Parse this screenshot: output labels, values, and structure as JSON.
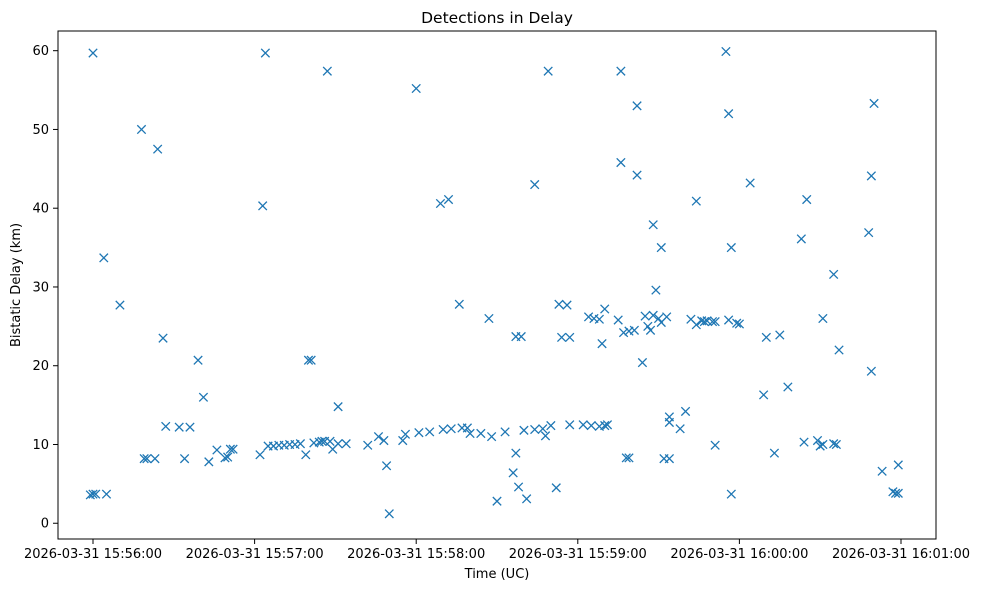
{
  "chart_data": {
    "type": "scatter",
    "title": "Detections in Delay",
    "xlabel": "Time (UC)",
    "ylabel": "Bistatic Delay (km)",
    "marker": "x",
    "color": "#1f77b4",
    "grid": false,
    "x_ticks": [
      "2026-03-31 15:56:00",
      "2026-03-31 15:57:00",
      "2026-03-31 15:58:00",
      "2026-03-31 15:59:00",
      "2026-03-31 16:00:00",
      "2026-03-31 16:01:00"
    ],
    "y_ticks": [
      "0",
      "10",
      "20",
      "30",
      "40",
      "50",
      "60"
    ],
    "xlim": [
      "2026-03-31 15:55:47",
      "2026-03-31 16:01:13"
    ],
    "ylim": [
      -2,
      62.5
    ],
    "points": [
      [
        "15:55:59",
        3.6
      ],
      [
        "15:56:00",
        59.7
      ],
      [
        "15:56:00",
        3.7
      ],
      [
        "15:56:01",
        3.7
      ],
      [
        "15:56:04",
        33.7
      ],
      [
        "15:56:05",
        3.7
      ],
      [
        "15:56:10",
        27.7
      ],
      [
        "15:56:18",
        50.0
      ],
      [
        "15:56:19",
        8.2
      ],
      [
        "15:56:20",
        8.2
      ],
      [
        "15:56:23",
        8.2
      ],
      [
        "15:56:24",
        47.5
      ],
      [
        "15:56:26",
        23.5
      ],
      [
        "15:56:27",
        12.3
      ],
      [
        "15:56:32",
        12.2
      ],
      [
        "15:56:34",
        8.2
      ],
      [
        "15:56:36",
        12.2
      ],
      [
        "15:56:39",
        20.7
      ],
      [
        "15:56:41",
        16.0
      ],
      [
        "15:56:43",
        7.8
      ],
      [
        "15:56:46",
        9.3
      ],
      [
        "15:56:49",
        8.3
      ],
      [
        "15:56:50",
        8.4
      ],
      [
        "15:56:51",
        9.4
      ],
      [
        "15:56:52",
        9.4
      ],
      [
        "15:57:02",
        8.7
      ],
      [
        "15:57:03",
        40.3
      ],
      [
        "15:57:04",
        59.7
      ],
      [
        "15:57:05",
        9.8
      ],
      [
        "15:57:07",
        9.8
      ],
      [
        "15:57:09",
        9.9
      ],
      [
        "15:57:11",
        9.9
      ],
      [
        "15:57:13",
        10.0
      ],
      [
        "15:57:15",
        10.0
      ],
      [
        "15:57:17",
        10.1
      ],
      [
        "15:57:19",
        8.7
      ],
      [
        "15:57:20",
        20.7
      ],
      [
        "15:57:21",
        20.7
      ],
      [
        "15:57:22",
        10.2
      ],
      [
        "15:57:24",
        10.3
      ],
      [
        "15:57:25",
        10.4
      ],
      [
        "15:57:26",
        10.4
      ],
      [
        "15:57:27",
        57.4
      ],
      [
        "15:57:28",
        10.4
      ],
      [
        "15:57:29",
        9.4
      ],
      [
        "15:57:31",
        14.8
      ],
      [
        "15:57:31",
        10.1
      ],
      [
        "15:57:34",
        10.1
      ],
      [
        "15:57:42",
        9.9
      ],
      [
        "15:57:46",
        11.0
      ],
      [
        "15:57:48",
        10.5
      ],
      [
        "15:57:49",
        7.3
      ],
      [
        "15:57:50",
        1.2
      ],
      [
        "15:57:55",
        10.5
      ],
      [
        "15:57:56",
        11.3
      ],
      [
        "15:58:00",
        55.2
      ],
      [
        "15:58:01",
        11.5
      ],
      [
        "15:58:05",
        11.6
      ],
      [
        "15:58:09",
        40.6
      ],
      [
        "15:58:12",
        41.1
      ],
      [
        "15:58:10",
        11.9
      ],
      [
        "15:58:13",
        12.0
      ],
      [
        "15:58:16",
        27.8
      ],
      [
        "15:58:17",
        12.1
      ],
      [
        "15:58:19",
        12.1
      ],
      [
        "15:58:20",
        11.4
      ],
      [
        "15:58:24",
        11.4
      ],
      [
        "15:58:27",
        26.0
      ],
      [
        "15:58:28",
        11.0
      ],
      [
        "15:58:30",
        2.8
      ],
      [
        "15:58:33",
        11.6
      ],
      [
        "15:58:36",
        6.4
      ],
      [
        "15:58:37",
        8.9
      ],
      [
        "15:58:38",
        4.6
      ],
      [
        "15:58:37",
        23.7
      ],
      [
        "15:58:39",
        23.7
      ],
      [
        "15:58:40",
        11.8
      ],
      [
        "15:58:41",
        3.1
      ],
      [
        "15:58:44",
        11.9
      ],
      [
        "15:58:44",
        43.0
      ],
      [
        "15:58:47",
        12.0
      ],
      [
        "15:58:48",
        11.1
      ],
      [
        "15:58:49",
        57.4
      ],
      [
        "15:58:50",
        12.4
      ],
      [
        "15:58:52",
        4.5
      ],
      [
        "15:58:53",
        27.8
      ],
      [
        "15:58:54",
        23.6
      ],
      [
        "15:58:56",
        27.7
      ],
      [
        "15:58:57",
        23.6
      ],
      [
        "15:58:57",
        12.5
      ],
      [
        "15:59:02",
        12.5
      ],
      [
        "15:59:04",
        26.2
      ],
      [
        "15:59:05",
        12.4
      ],
      [
        "15:59:06",
        26.0
      ],
      [
        "15:59:08",
        12.3
      ],
      [
        "15:59:08",
        25.9
      ],
      [
        "15:59:09",
        22.8
      ],
      [
        "15:59:10",
        27.2
      ],
      [
        "15:59:10",
        12.4
      ],
      [
        "15:59:11",
        12.5
      ],
      [
        "15:59:15",
        25.8
      ],
      [
        "15:59:16",
        57.4
      ],
      [
        "15:59:16",
        45.8
      ],
      [
        "15:59:17",
        24.2
      ],
      [
        "15:59:18",
        8.3
      ],
      [
        "15:59:19",
        8.3
      ],
      [
        "15:59:19",
        24.4
      ],
      [
        "15:59:21",
        24.5
      ],
      [
        "15:59:22",
        53.0
      ],
      [
        "15:59:22",
        44.2
      ],
      [
        "15:59:24",
        20.4
      ],
      [
        "15:59:25",
        26.3
      ],
      [
        "15:59:26",
        25.0
      ],
      [
        "15:59:27",
        24.5
      ],
      [
        "15:59:28",
        26.4
      ],
      [
        "15:59:28",
        37.9
      ],
      [
        "15:59:29",
        29.6
      ],
      [
        "15:59:30",
        26.0
      ],
      [
        "15:59:31",
        35.0
      ],
      [
        "15:59:31",
        25.5
      ],
      [
        "15:59:32",
        8.2
      ],
      [
        "15:59:33",
        26.2
      ],
      [
        "15:59:34",
        13.5
      ],
      [
        "15:59:34",
        8.2
      ],
      [
        "15:59:34",
        12.8
      ],
      [
        "15:59:38",
        12.0
      ],
      [
        "15:59:40",
        14.2
      ],
      [
        "15:59:42",
        25.9
      ],
      [
        "15:59:44",
        25.2
      ],
      [
        "15:59:44",
        40.9
      ],
      [
        "15:59:46",
        25.7
      ],
      [
        "15:59:47",
        25.6
      ],
      [
        "15:59:48",
        25.7
      ],
      [
        "15:59:50",
        25.6
      ],
      [
        "15:59:51",
        9.9
      ],
      [
        "15:59:51",
        25.6
      ],
      [
        "15:59:55",
        59.9
      ],
      [
        "15:59:56",
        25.8
      ],
      [
        "15:59:56",
        52.0
      ],
      [
        "15:59:57",
        3.7
      ],
      [
        "15:59:57",
        35.0
      ],
      [
        "15:59:59",
        25.4
      ],
      [
        "16:00:00",
        25.3
      ],
      [
        "16:00:04",
        43.2
      ],
      [
        "16:00:09",
        16.3
      ],
      [
        "16:00:10",
        23.6
      ],
      [
        "16:00:13",
        8.9
      ],
      [
        "16:00:15",
        23.9
      ],
      [
        "16:00:18",
        17.3
      ],
      [
        "16:00:23",
        36.1
      ],
      [
        "16:00:24",
        10.3
      ],
      [
        "16:00:25",
        41.1
      ],
      [
        "16:00:29",
        10.5
      ],
      [
        "16:00:30",
        9.8
      ],
      [
        "16:00:31",
        26.0
      ],
      [
        "16:00:31",
        10.0
      ],
      [
        "16:00:35",
        10.1
      ],
      [
        "16:00:35",
        31.6
      ],
      [
        "16:00:36",
        10.0
      ],
      [
        "16:00:37",
        22.0
      ],
      [
        "16:00:48",
        36.9
      ],
      [
        "16:00:49",
        44.1
      ],
      [
        "16:00:49",
        19.3
      ],
      [
        "16:00:50",
        53.3
      ],
      [
        "16:00:53",
        6.6
      ],
      [
        "16:00:57",
        4.0
      ],
      [
        "16:00:58",
        3.8
      ],
      [
        "16:00:59",
        3.8
      ],
      [
        "16:00:59",
        7.4
      ]
    ]
  }
}
